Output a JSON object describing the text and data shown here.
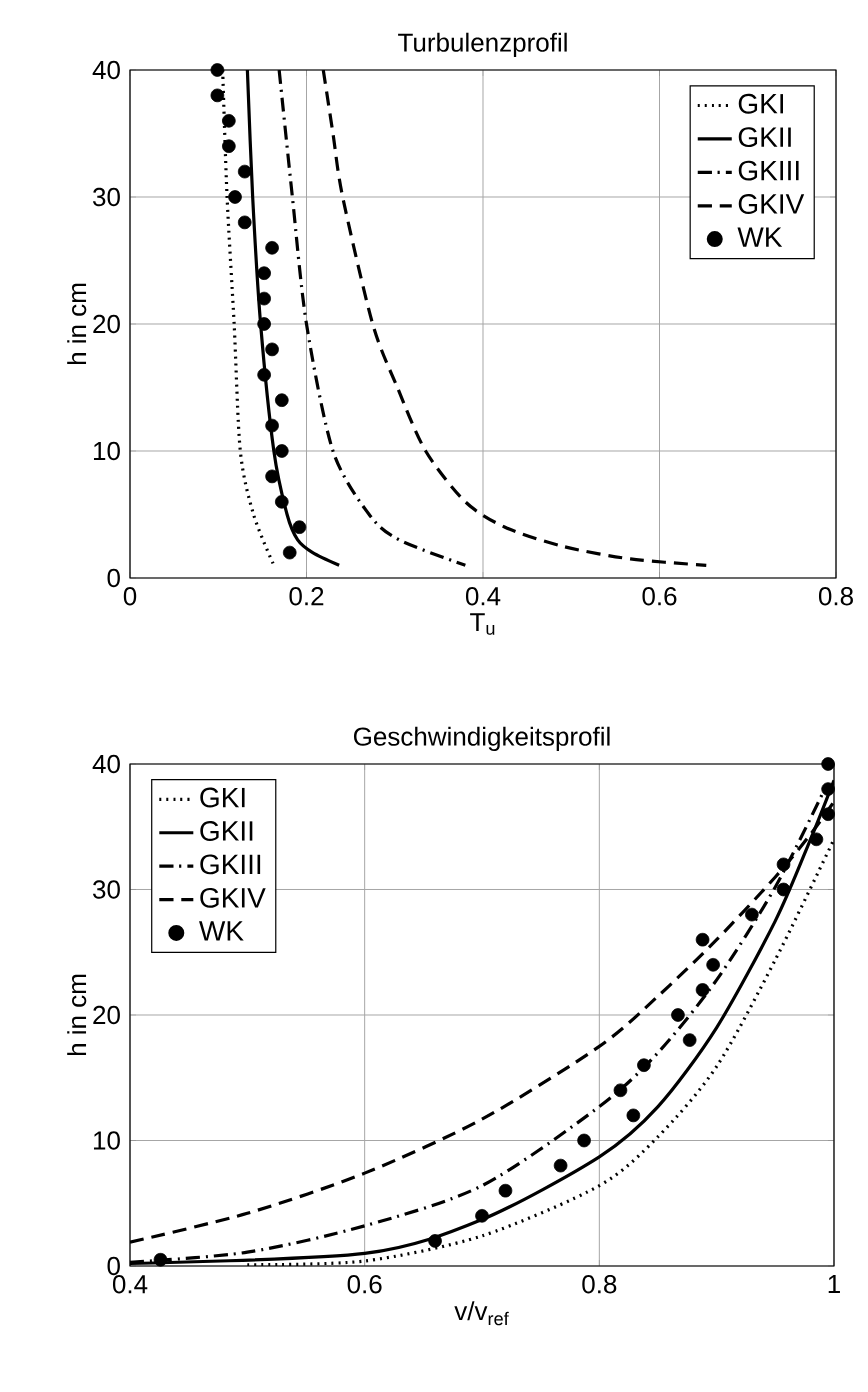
{
  "chart_data": [
    {
      "type": "line",
      "marker": "circle",
      "title": "Turbulenzprofil",
      "xlabel": "T$_{u}$",
      "ylabel": "h in cm",
      "xlim": [
        0,
        0.8
      ],
      "ylim": [
        0,
        40
      ],
      "xticks": [
        0,
        0.2,
        0.4,
        0.6,
        0.8
      ],
      "yticks": [
        0,
        10,
        20,
        30,
        40
      ],
      "grid": true,
      "legend": "top right",
      "series": [
        {
          "name": "GKI",
          "color": "#000000",
          "marker": "none",
          "line_style": "dotted",
          "x": [
            0.105,
            0.11,
            0.118,
            0.125,
            0.14,
            0.163
          ],
          "values": [
            40,
            30,
            20,
            10,
            5,
            1
          ]
        },
        {
          "name": "GKII",
          "color": "#000000",
          "marker": "none",
          "line_style": "solid",
          "x": [
            0.133,
            0.139,
            0.148,
            0.163,
            0.178,
            0.19,
            0.207,
            0.237
          ],
          "values": [
            40,
            30,
            20,
            10,
            5,
            3,
            2,
            1
          ]
        },
        {
          "name": "GKIII",
          "color": "#000000",
          "marker": "none",
          "line_style": "dashdot",
          "x": [
            0.169,
            0.184,
            0.2,
            0.23,
            0.271,
            0.305,
            0.38
          ],
          "values": [
            40,
            30,
            20,
            10,
            5,
            3,
            1
          ]
        },
        {
          "name": "GKIV",
          "color": "#000000",
          "marker": "none",
          "line_style": "dashed",
          "x": [
            0.219,
            0.23,
            0.241,
            0.275,
            0.303,
            0.335,
            0.38,
            0.425,
            0.49,
            0.567,
            0.653
          ],
          "values": [
            40,
            35,
            30,
            20,
            15,
            10,
            6,
            4,
            2.5,
            1.5,
            1
          ]
        },
        {
          "name": "WK",
          "type": "scatter",
          "color": "#000000",
          "x": [
            0.099,
            0.099,
            0.112,
            0.112,
            0.13,
            0.119,
            0.13,
            0.161,
            0.152,
            0.152,
            0.152,
            0.161,
            0.152,
            0.172,
            0.161,
            0.172,
            0.161,
            0.172,
            0.192,
            0.181
          ],
          "values": [
            40,
            38,
            36,
            34,
            32,
            30,
            28,
            26,
            24,
            22,
            20,
            18,
            16,
            14,
            12,
            10,
            8,
            6,
            4,
            2
          ]
        }
      ]
    },
    {
      "type": "line",
      "marker": "circle",
      "title": "Geschwindigkeitsprofil",
      "xlabel": "v/v$_{ref}$",
      "ylabel": "h in cm",
      "xlim": [
        0.4,
        1
      ],
      "ylim": [
        0,
        40
      ],
      "xticks": [
        0.4,
        0.6,
        0.8,
        1
      ],
      "yticks": [
        0,
        10,
        20,
        30,
        40
      ],
      "grid": true,
      "legend": "top left",
      "series": [
        {
          "name": "GKI",
          "color": "#000000",
          "marker": "none",
          "line_style": "dotted",
          "x": [
            0.5,
            0.6,
            0.7,
            0.8,
            0.85,
            0.9,
            0.95,
            1.0
          ],
          "values": [
            0.1,
            0.4,
            2.4,
            6.4,
            10.3,
            15.9,
            24.4,
            34
          ]
        },
        {
          "name": "GKII",
          "color": "#000000",
          "marker": "none",
          "line_style": "solid",
          "x": [
            0.4,
            0.6,
            0.7,
            0.8,
            0.85,
            0.9,
            0.95,
            0.98,
            1.0
          ],
          "values": [
            0.2,
            1.0,
            3.7,
            8.7,
            12.7,
            19,
            27.5,
            34,
            38.7
          ]
        },
        {
          "name": "GKIII",
          "color": "#000000",
          "marker": "none",
          "line_style": "dashdot",
          "x": [
            0.4,
            0.5,
            0.6,
            0.7,
            0.8,
            0.85,
            0.9,
            0.95,
            0.99
          ],
          "values": [
            0.3,
            1.1,
            3.2,
            6.4,
            12.7,
            17,
            22.8,
            30.2,
            37.6
          ]
        },
        {
          "name": "GKIV",
          "color": "#000000",
          "marker": "none",
          "line_style": "dashed",
          "x": [
            0.4,
            0.5,
            0.6,
            0.7,
            0.8,
            0.85,
            0.9,
            0.95,
            0.98,
            1.0
          ],
          "values": [
            1.9,
            4.2,
            7.4,
            11.7,
            17.5,
            21.5,
            26,
            31,
            34.4,
            37
          ]
        },
        {
          "name": "WK",
          "type": "scatter",
          "color": "#000000",
          "x": [
            0.426,
            0.66,
            0.7,
            0.72,
            0.767,
            0.787,
            0.829,
            0.818,
            0.838,
            0.877,
            0.867,
            0.888,
            0.897,
            0.888,
            0.93,
            0.957,
            0.957,
            0.985,
            0.995,
            0.995,
            0.995
          ],
          "values": [
            0.5,
            2,
            4,
            6,
            8,
            10,
            12,
            14,
            16,
            18,
            20,
            22,
            24,
            26,
            28,
            30,
            32,
            34,
            36,
            38,
            40
          ]
        }
      ]
    }
  ]
}
